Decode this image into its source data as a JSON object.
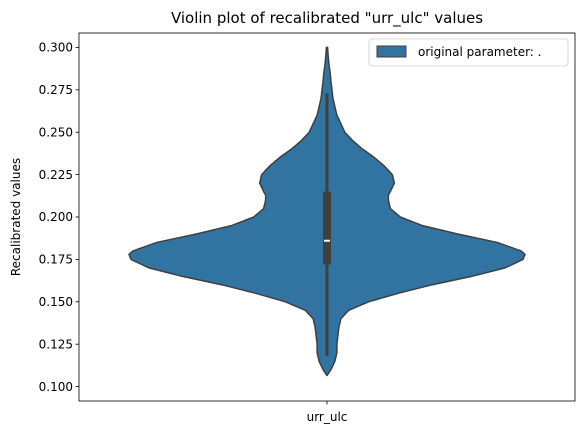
{
  "chart_data": {
    "type": "violin",
    "title": "Violin plot of recalibrated \"urr_ulc\" values",
    "xlabel": "",
    "ylabel": "Recalibrated values",
    "categories": [
      "urr_ulc"
    ],
    "ylim": [
      0.1,
      0.3
    ],
    "yticks": [
      "0.100",
      "0.125",
      "0.150",
      "0.175",
      "0.200",
      "0.225",
      "0.250",
      "0.275",
      "0.300"
    ],
    "ytick_values": [
      0.1,
      0.125,
      0.15,
      0.175,
      0.2,
      0.225,
      0.25,
      0.275,
      0.3
    ],
    "grid": false,
    "legend": {
      "placement": "top-right",
      "entries": [
        "original parameter: ."
      ]
    },
    "series": [
      {
        "name": "original parameter: .",
        "color": "#3274a1",
        "density_profile": [
          [
            0.1065,
            0.0
          ],
          [
            0.11,
            0.02
          ],
          [
            0.115,
            0.04
          ],
          [
            0.12,
            0.05
          ],
          [
            0.125,
            0.05
          ],
          [
            0.13,
            0.055
          ],
          [
            0.135,
            0.06
          ],
          [
            0.14,
            0.07
          ],
          [
            0.145,
            0.11
          ],
          [
            0.15,
            0.21
          ],
          [
            0.155,
            0.36
          ],
          [
            0.16,
            0.53
          ],
          [
            0.165,
            0.73
          ],
          [
            0.17,
            0.9
          ],
          [
            0.175,
            0.99
          ],
          [
            0.178,
            1.0
          ],
          [
            0.18,
            0.98
          ],
          [
            0.185,
            0.86
          ],
          [
            0.19,
            0.66
          ],
          [
            0.195,
            0.48
          ],
          [
            0.2,
            0.37
          ],
          [
            0.205,
            0.32
          ],
          [
            0.21,
            0.31
          ],
          [
            0.213,
            0.31
          ],
          [
            0.215,
            0.32
          ],
          [
            0.22,
            0.34
          ],
          [
            0.225,
            0.33
          ],
          [
            0.23,
            0.29
          ],
          [
            0.235,
            0.24
          ],
          [
            0.24,
            0.18
          ],
          [
            0.245,
            0.13
          ],
          [
            0.25,
            0.09
          ],
          [
            0.255,
            0.07
          ],
          [
            0.26,
            0.05
          ],
          [
            0.265,
            0.04
          ],
          [
            0.27,
            0.03
          ],
          [
            0.275,
            0.025
          ],
          [
            0.28,
            0.02
          ],
          [
            0.285,
            0.016
          ],
          [
            0.29,
            0.01
          ],
          [
            0.295,
            0.006
          ],
          [
            0.3,
            0.003
          ]
        ],
        "whisker_low": 0.118,
        "whisker_high": 0.273,
        "q1": 0.172,
        "median": 0.186,
        "q3": 0.215
      }
    ]
  }
}
